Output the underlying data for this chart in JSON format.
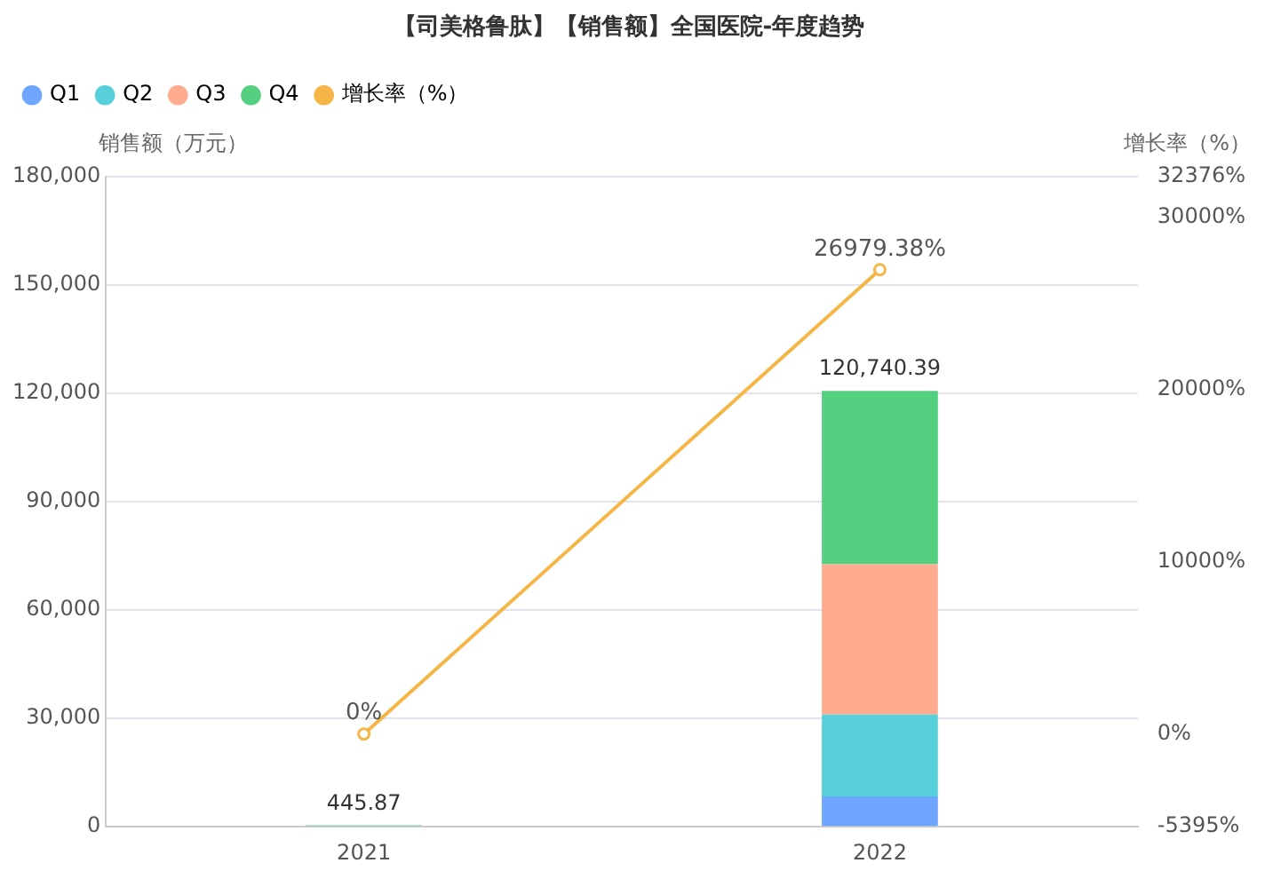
{
  "chart_data": {
    "type": "bar",
    "title": "【司美格鲁肽】【销售额】全国医院-年度趋势",
    "ylabel": "销售额（万元）",
    "y2label": "增长率（%）",
    "categories": [
      "2021",
      "2022"
    ],
    "stacked": true,
    "series": [
      {
        "name": "Q1",
        "color": "#6ea6ff",
        "values": [
          null,
          8400
        ]
      },
      {
        "name": "Q2",
        "color": "#57d0dc",
        "values": [
          null,
          22700
        ]
      },
      {
        "name": "Q3",
        "color": "#ffab8f",
        "values": [
          null,
          41600
        ]
      },
      {
        "name": "Q4",
        "color": "#55cf80",
        "values": [
          445.87,
          48040.39
        ]
      },
      {
        "name": "增长率（%）",
        "type": "line",
        "axis": "y2",
        "color": "#f5b547",
        "values": [
          0,
          26979.38
        ],
        "value_labels": [
          "0%",
          "26979.38%"
        ]
      }
    ],
    "totals": [
      "445.87",
      "120,740.39"
    ],
    "ylim": [
      0,
      180000
    ],
    "yticks": [
      {
        "value": 0,
        "label": "0"
      },
      {
        "value": 30000,
        "label": "30,000"
      },
      {
        "value": 60000,
        "label": "60,000"
      },
      {
        "value": 90000,
        "label": "90,000"
      },
      {
        "value": 120000,
        "label": "120,000"
      },
      {
        "value": 150000,
        "label": "150,000"
      },
      {
        "value": 180000,
        "label": "180,000"
      }
    ],
    "y2lim": [
      -5395,
      32376
    ],
    "y2ticks": [
      {
        "value": -5395,
        "label": "-5395%"
      },
      {
        "value": 0,
        "label": "0%"
      },
      {
        "value": 10000,
        "label": "10000%"
      },
      {
        "value": 20000,
        "label": "20000%"
      },
      {
        "value": 30000,
        "label": "30000%"
      },
      {
        "value": 32376,
        "label": "32376%"
      }
    ],
    "grid": "y",
    "legend": "top left",
    "marker": "circle",
    "line_style": "solid"
  }
}
